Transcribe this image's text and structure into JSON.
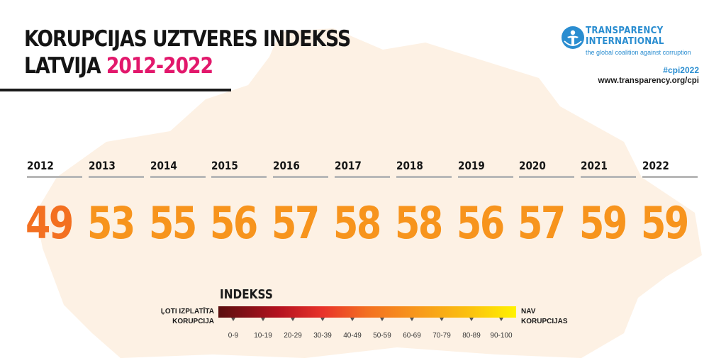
{
  "title": {
    "line1": "KORUPCIJAS UZTVERES INDEKSS",
    "line2_prefix": "LATVIJA",
    "line2_accent": "2012-2022"
  },
  "brand": {
    "name_line1": "TRANSPARENCY",
    "name_line2": "INTERNATIONAL",
    "tagline": "the global coalition against corruption",
    "hashtag": "#cpi2022",
    "url": "www.transparency.org/cpi",
    "color": "#2a8dd0",
    "icon": "ti-logo-icon"
  },
  "colors": {
    "accent": "#e2186c",
    "score_first": "#f37021",
    "score_rest": "#f7941d",
    "map_fill": "#fdf1e4"
  },
  "scores": [
    {
      "year": "2012",
      "value": "49"
    },
    {
      "year": "2013",
      "value": "53"
    },
    {
      "year": "2014",
      "value": "55"
    },
    {
      "year": "2015",
      "value": "56"
    },
    {
      "year": "2016",
      "value": "57"
    },
    {
      "year": "2017",
      "value": "58"
    },
    {
      "year": "2018",
      "value": "58"
    },
    {
      "year": "2019",
      "value": "56"
    },
    {
      "year": "2020",
      "value": "57"
    },
    {
      "year": "2021",
      "value": "59"
    },
    {
      "year": "2022",
      "value": "59"
    }
  ],
  "legend": {
    "title": "INDEKSS",
    "left_label_line1": "ĻOTI IZPLATĪTA",
    "left_label_line2": "KORUPCIJA",
    "right_label_line1": "NAV",
    "right_label_line2": "KORUPCIJAS",
    "ranges": [
      "0-9",
      "10-19",
      "20-29",
      "30-39",
      "40-49",
      "50-59",
      "60-69",
      "70-79",
      "80-89",
      "90-100"
    ]
  }
}
